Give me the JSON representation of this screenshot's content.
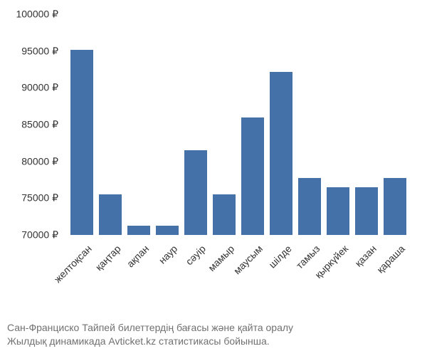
{
  "chart": {
    "type": "bar",
    "categories": [
      "желтоқсан",
      "қаңтар",
      "ақпан",
      "наур",
      "сәуір",
      "мамыр",
      "маусым",
      "шілде",
      "тамыз",
      "қыркүйек",
      "қазан",
      "қараша"
    ],
    "values": [
      95200,
      75500,
      71300,
      71300,
      81500,
      75500,
      86000,
      92200,
      77700,
      76500,
      76500,
      77700
    ],
    "bar_color": "#4472a8",
    "background_color": "#ffffff",
    "ylim": [
      70000,
      100000
    ],
    "ytick_step": 5000,
    "ytick_suffix": " ₽",
    "ytick_labels": [
      "70000 ₽",
      "75000 ₽",
      "80000 ₽",
      "85000 ₽",
      "90000 ₽",
      "95000 ₽",
      "100000 ₽"
    ],
    "label_fontsize": 14,
    "label_color": "#333333",
    "bar_width_ratio": 0.78,
    "x_label_rotation": -45
  },
  "caption": {
    "line1": "Сан-Франциско Тайпей билеттердің бағасы және қайта оралу",
    "line2": "Жылдық динамикада Avticket.kz статистикасы бойынша.",
    "color": "#707070",
    "fontsize": 14
  }
}
